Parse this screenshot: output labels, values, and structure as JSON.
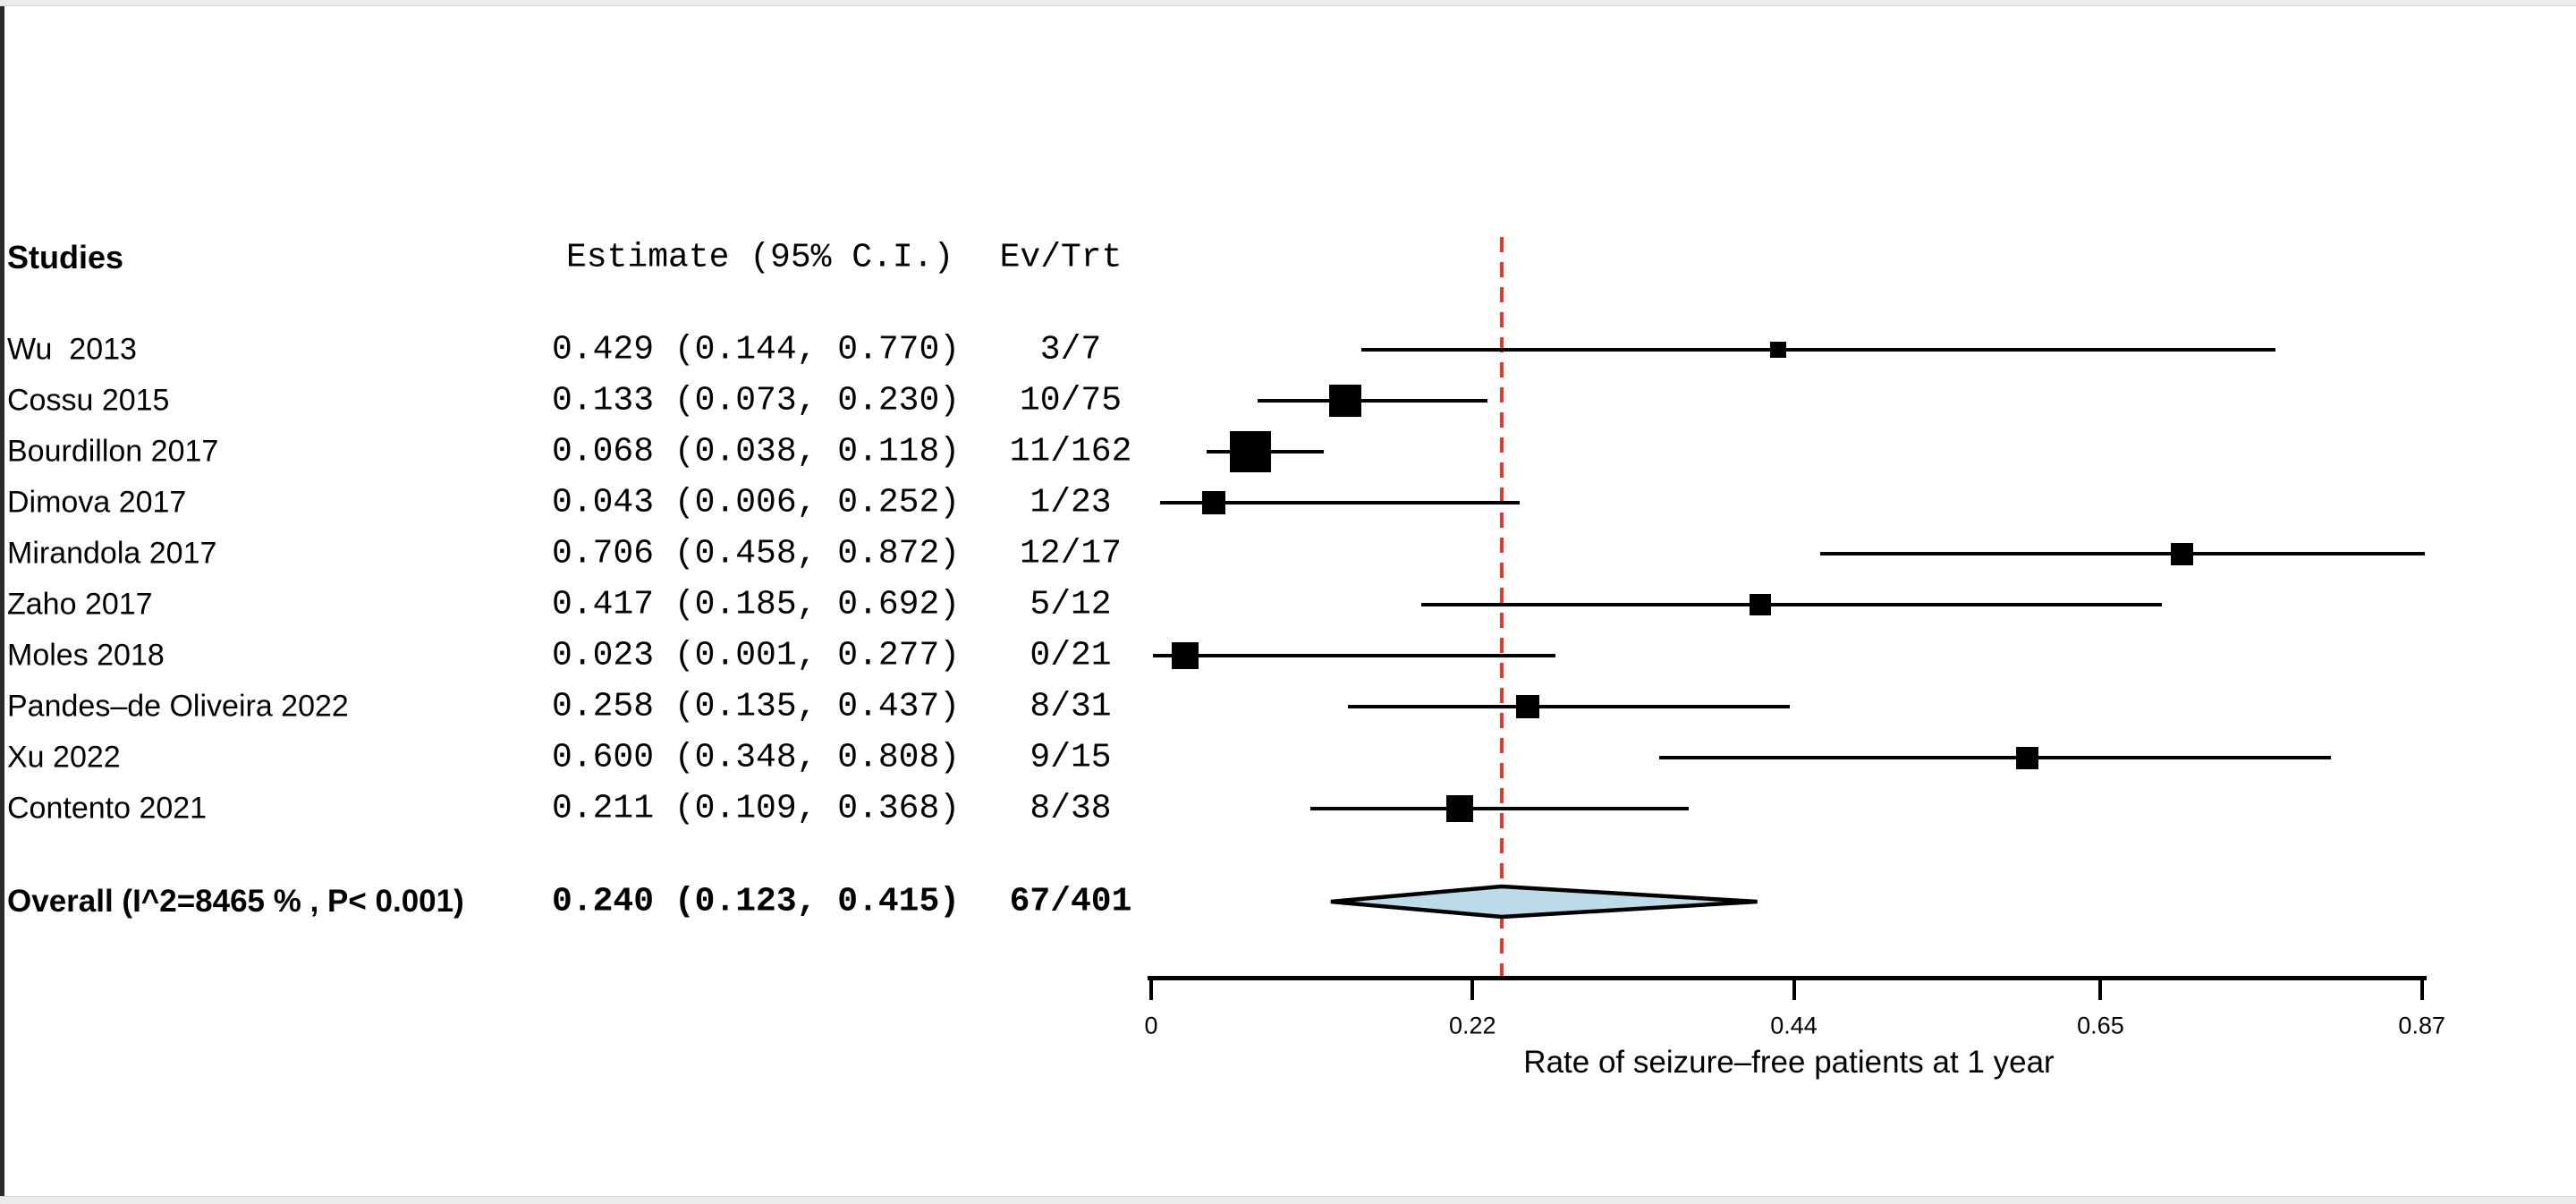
{
  "header": {
    "studies": "Studies",
    "estimate": "Estimate (95% C.I.)",
    "ev_trt": "Ev/Trt"
  },
  "chart_data": {
    "type": "forest",
    "xlabel": "Rate of seizure–free patients at 1 year",
    "xlim": [
      0,
      0.87
    ],
    "x_ticks": [
      0,
      0.22,
      0.44,
      0.65,
      0.87
    ],
    "x_tick_labels": [
      "0",
      "0.22",
      "0.44",
      "0.65",
      "0.87"
    ],
    "reference_line": 0.24,
    "reference_line_color": "#e8382b",
    "marker_color": "#000000",
    "ci_color": "#000000",
    "diamond_fill": "#bcdae7",
    "diamond_stroke": "#000000",
    "studies": [
      {
        "name": "Wu  2013",
        "estimate": 0.429,
        "ci_low": 0.144,
        "ci_high": 0.77,
        "estimate_label": "0.429 (0.144, 0.770)",
        "ev_trt": "3/7",
        "marker_size": 18
      },
      {
        "name": "Cossu 2015",
        "estimate": 0.133,
        "ci_low": 0.073,
        "ci_high": 0.23,
        "estimate_label": "0.133 (0.073, 0.230)",
        "ev_trt": "10/75",
        "marker_size": 36
      },
      {
        "name": "Bourdillon 2017",
        "estimate": 0.068,
        "ci_low": 0.038,
        "ci_high": 0.118,
        "estimate_label": "0.068 (0.038, 0.118)",
        "ev_trt": "11/162",
        "marker_size": 46
      },
      {
        "name": "Dimova 2017",
        "estimate": 0.043,
        "ci_low": 0.006,
        "ci_high": 0.252,
        "estimate_label": "0.043 (0.006, 0.252)",
        "ev_trt": "1/23",
        "marker_size": 26
      },
      {
        "name": "Mirandola 2017",
        "estimate": 0.706,
        "ci_low": 0.458,
        "ci_high": 0.872,
        "estimate_label": "0.706 (0.458, 0.872)",
        "ev_trt": "12/17",
        "marker_size": 25
      },
      {
        "name": "Zaho 2017",
        "estimate": 0.417,
        "ci_low": 0.185,
        "ci_high": 0.692,
        "estimate_label": "0.417 (0.185, 0.692)",
        "ev_trt": "5/12",
        "marker_size": 24
      },
      {
        "name": "Moles 2018",
        "estimate": 0.023,
        "ci_low": 0.001,
        "ci_high": 0.277,
        "estimate_label": "0.023 (0.001, 0.277)",
        "ev_trt": "0/21",
        "marker_size": 30
      },
      {
        "name": "Pandes–de Oliveira 2022",
        "estimate": 0.258,
        "ci_low": 0.135,
        "ci_high": 0.437,
        "estimate_label": "0.258 (0.135, 0.437)",
        "ev_trt": "8/31",
        "marker_size": 26
      },
      {
        "name": "Xu 2022",
        "estimate": 0.6,
        "ci_low": 0.348,
        "ci_high": 0.808,
        "estimate_label": "0.600 (0.348, 0.808)",
        "ev_trt": "9/15",
        "marker_size": 25
      },
      {
        "name": "Contento 2021",
        "estimate": 0.211,
        "ci_low": 0.109,
        "ci_high": 0.368,
        "estimate_label": "0.211 (0.109, 0.368)",
        "ev_trt": "8/38",
        "marker_size": 30
      }
    ],
    "overall": {
      "label": "Overall (I^2=8465 % , P< 0.001)",
      "estimate": 0.24,
      "ci_low": 0.123,
      "ci_high": 0.415,
      "estimate_label": "0.240 (0.123, 0.415)",
      "ev_trt": "67/401"
    }
  }
}
